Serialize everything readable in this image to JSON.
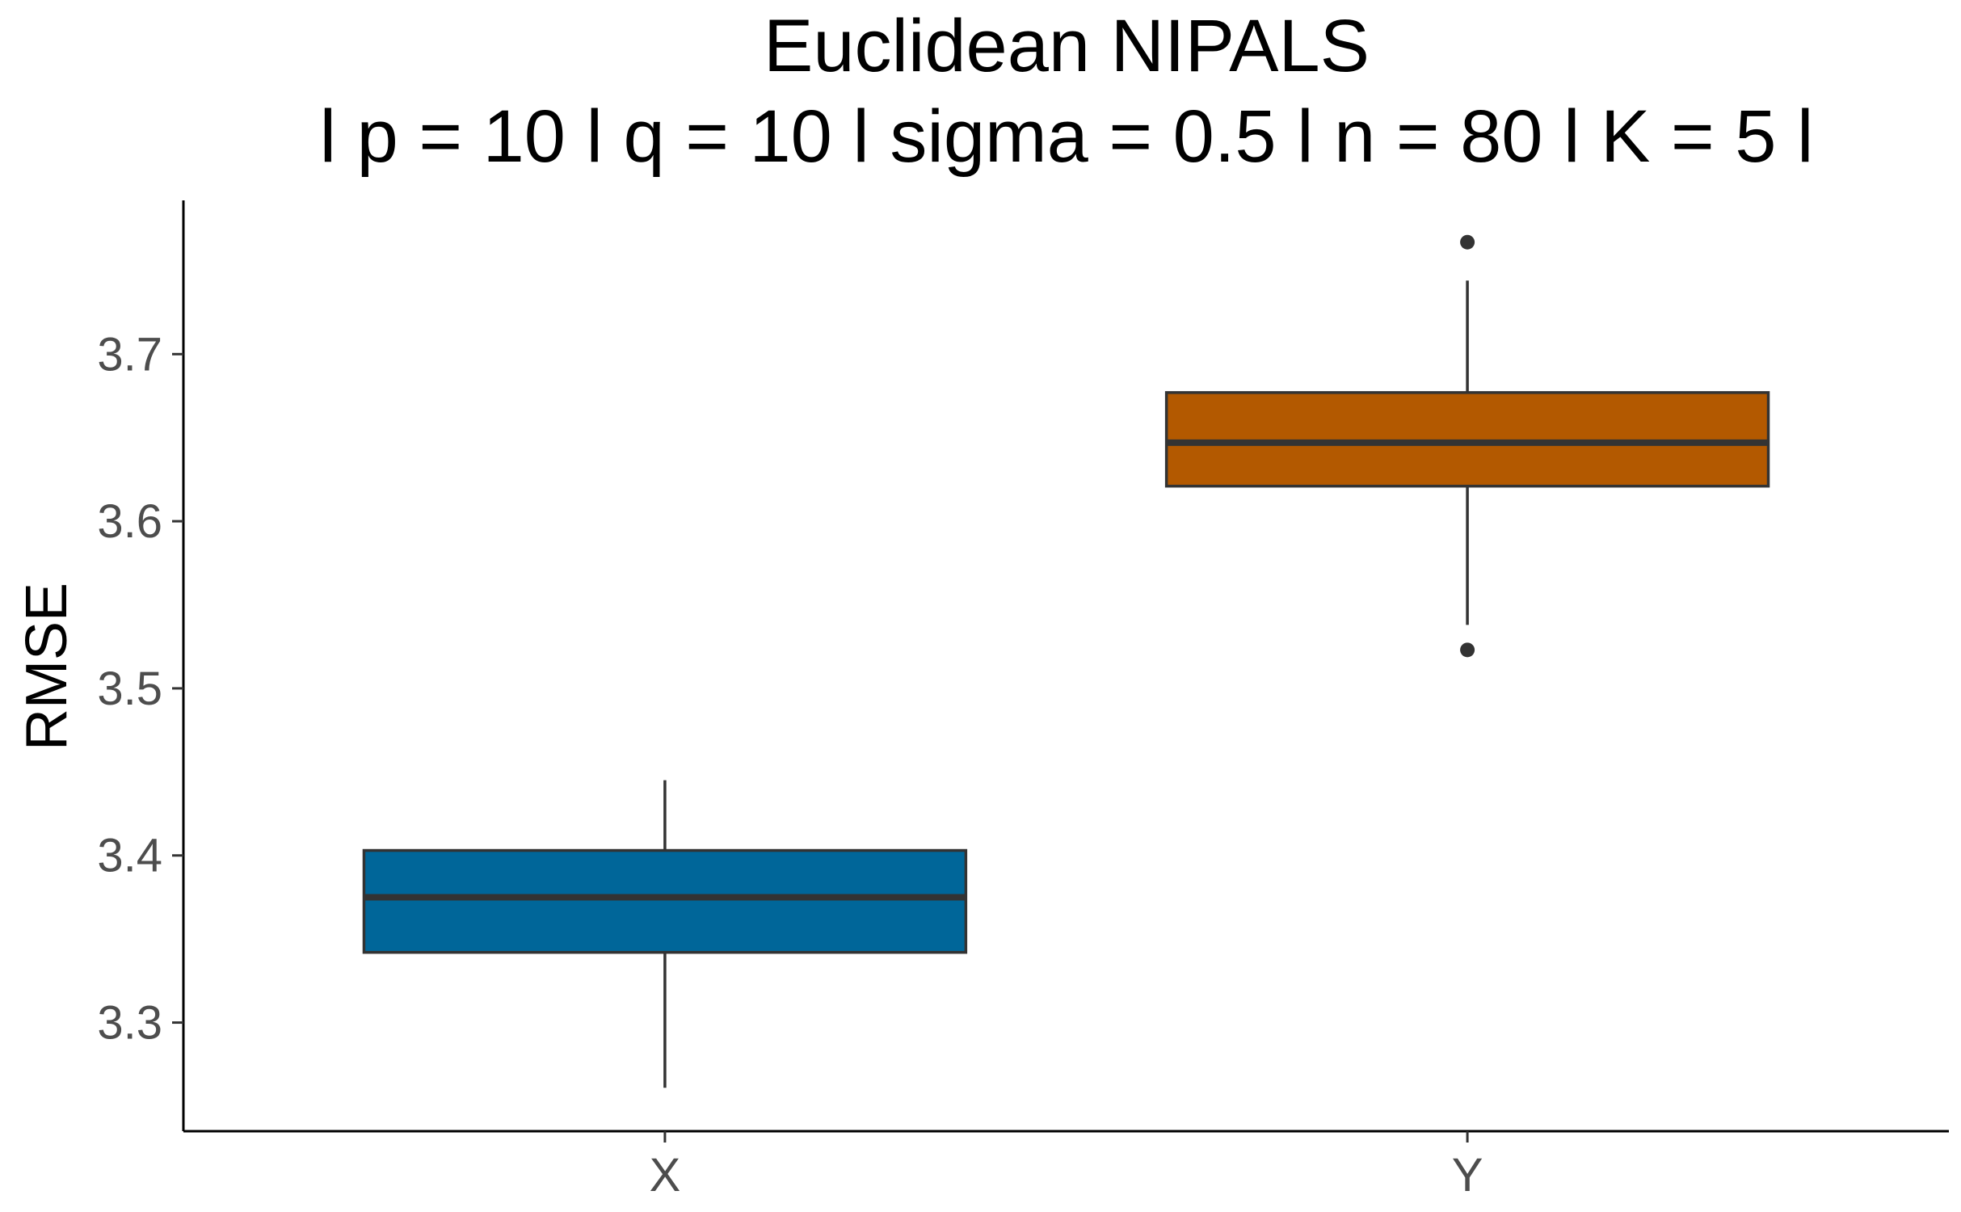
{
  "chart_data": {
    "type": "box",
    "title": "Euclidean NIPALS",
    "subtitle": "l p = 10 l q = 10 l sigma = 0.5 l n = 80 l K = 5 l",
    "xlabel": "",
    "ylabel": "RMSE",
    "ylim": [
      3.235,
      3.792
    ],
    "yticks": [
      3.3,
      3.4,
      3.5,
      3.6,
      3.7
    ],
    "ytick_labels": [
      "3.3",
      "3.4",
      "3.5",
      "3.6",
      "3.7"
    ],
    "categories": [
      "X",
      "Y"
    ],
    "grid": false,
    "legend": "none",
    "boxes": [
      {
        "category": "X",
        "whisker_low": 3.261,
        "q1": 3.342,
        "median": 3.375,
        "q3": 3.403,
        "whisker_high": 3.445,
        "outliers": [],
        "color": "#006699"
      },
      {
        "category": "Y",
        "whisker_low": 3.538,
        "q1": 3.621,
        "median": 3.647,
        "q3": 3.677,
        "whisker_high": 3.744,
        "outliers": [
          3.523,
          3.767
        ],
        "color": "#b35900"
      }
    ]
  }
}
